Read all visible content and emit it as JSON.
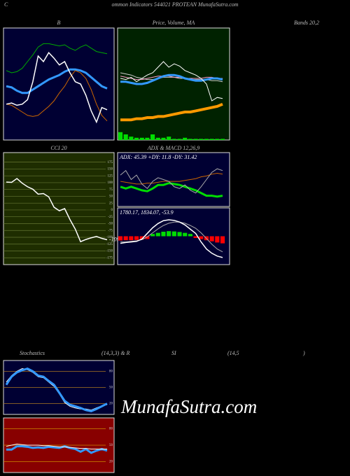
{
  "header": {
    "c": "C",
    "title": "ommon  Indicators 544021 PROTEAN  MunafaSutra.com",
    "bands": "Bands 20,2",
    "stoch_labels": [
      "Stochastics",
      "(14,3,3) & R",
      "SI",
      "(14,5",
      ")"
    ],
    "watermark": "MunafaSutra.com"
  },
  "chart_data": [
    {
      "type": "line",
      "title": "B",
      "background": "#000033",
      "ylim": [
        0,
        100
      ],
      "series": [
        {
          "color": "#00aa00",
          "width": 1,
          "values": [
            62,
            60,
            61,
            64,
            70,
            76,
            83,
            86,
            86,
            85,
            84,
            85,
            82,
            80,
            83,
            85,
            82,
            79,
            78,
            77
          ]
        },
        {
          "color": "#3399ff",
          "width": 3,
          "values": [
            48,
            47,
            44,
            42,
            42,
            45,
            48,
            51,
            54,
            56,
            58,
            61,
            63,
            63,
            62,
            60,
            56,
            52,
            48,
            46
          ]
        },
        {
          "color": "#cc6600",
          "width": 1,
          "values": [
            32,
            31,
            28,
            25,
            22,
            21,
            22,
            26,
            30,
            35,
            42,
            48,
            56,
            62,
            60,
            55,
            45,
            32,
            22,
            17
          ]
        },
        {
          "color": "#ffffff",
          "width": 1.5,
          "values": [
            32,
            33,
            31,
            32,
            36,
            52,
            75,
            70,
            78,
            73,
            67,
            70,
            60,
            52,
            50,
            40,
            26,
            16,
            29,
            27
          ]
        }
      ]
    },
    {
      "type": "line",
      "title": "Price, Volume, MA",
      "background": "#002200",
      "ylim": [
        0,
        100
      ],
      "series": [
        {
          "color": "#00dd00",
          "style": "bar",
          "values": [
            7,
            5,
            3,
            2,
            2,
            2,
            5,
            2,
            2,
            3,
            1,
            1,
            2,
            1,
            1,
            1,
            1,
            1,
            1,
            1
          ]
        },
        {
          "color": "#cccccc",
          "width": 1,
          "values": [
            60,
            59,
            58,
            56,
            55,
            54,
            54,
            55,
            56,
            56,
            56,
            55,
            55,
            54,
            54,
            54,
            54,
            53,
            53,
            52
          ]
        },
        {
          "color": "#ff99cc",
          "width": 1,
          "values": [
            57,
            56,
            55,
            54,
            54,
            55,
            56,
            57,
            57,
            57,
            56,
            56,
            55,
            55,
            55,
            55,
            56,
            56,
            55,
            55
          ]
        },
        {
          "color": "#3399ff",
          "width": 3,
          "values": [
            52,
            52,
            51,
            50,
            50,
            51,
            53,
            55,
            57,
            58,
            58,
            57,
            55,
            54,
            53,
            53,
            54,
            55,
            55,
            54
          ]
        },
        {
          "color": "#ff9900",
          "width": 4,
          "values": [
            18,
            18,
            18,
            19,
            19,
            20,
            20,
            21,
            21,
            22,
            23,
            24,
            25,
            25,
            26,
            27,
            28,
            29,
            30,
            32
          ]
        },
        {
          "color": "#ffffff",
          "width": 1,
          "values": [
            55,
            54,
            56,
            52,
            55,
            58,
            60,
            65,
            70,
            65,
            68,
            66,
            62,
            60,
            58,
            55,
            50,
            35,
            38,
            37
          ]
        }
      ]
    },
    {
      "type": "line",
      "title": "CCI 20",
      "background": "#1e2d00",
      "grid_color": "#667733",
      "ylim": [
        -200,
        210
      ],
      "yticks": [
        175,
        150,
        125,
        100,
        75,
        50,
        25,
        0,
        -25,
        -50,
        -75,
        -100,
        -125,
        -150,
        -175
      ],
      "series": [
        {
          "color": "#ffffff",
          "width": 1.5,
          "label_last": true,
          "values": [
            102,
            101,
            115,
            98,
            85,
            76,
            58,
            60,
            48,
            10,
            -3,
            5,
            -35,
            -70,
            -116,
            -108,
            -102,
            -97,
            -104,
            -109
          ]
        }
      ]
    },
    {
      "type": "line",
      "title": "ADX  & MACD 12,26,9",
      "subtitle": "ADX: 45.39 +DY: 11.8 -DY: 31.42",
      "background": "#000033",
      "ylim": [
        0,
        60
      ],
      "series": [
        {
          "color": "#cc6600",
          "width": 1,
          "values": [
            28,
            27,
            26,
            25,
            25,
            26,
            26,
            27,
            28,
            28,
            28,
            28,
            29,
            30,
            31,
            33,
            34,
            36,
            37,
            36
          ]
        },
        {
          "color": "#00dd00",
          "width": 3,
          "values": [
            22,
            20,
            22,
            20,
            18,
            17,
            20,
            24,
            24,
            26,
            25,
            24,
            22,
            20,
            18,
            15,
            12,
            12,
            11,
            12
          ]
        },
        {
          "color": "#aaaaaa",
          "width": 1,
          "values": [
            35,
            40,
            30,
            35,
            25,
            20,
            28,
            32,
            30,
            28,
            22,
            20,
            24,
            18,
            15,
            22,
            30,
            38,
            42,
            40
          ]
        }
      ]
    },
    {
      "type": "line",
      "subtitle": "1780.17,  1834.07,  -53.9",
      "background": "#000033",
      "ylim": [
        -100,
        100
      ],
      "series": [
        {
          "color": "#00dd00",
          "negative_color": "#ff0000",
          "style": "bar",
          "values": [
            -15,
            -14,
            -14,
            -13,
            -12,
            -10,
            8,
            12,
            16,
            18,
            17,
            15,
            12,
            8,
            -6,
            -10,
            -14,
            -18,
            -22,
            -25
          ]
        },
        {
          "color": "#aaaaaa",
          "width": 1,
          "values": [
            -20,
            -20,
            -18,
            -16,
            -12,
            -2,
            12,
            26,
            38,
            46,
            50,
            50,
            46,
            38,
            28,
            12,
            -8,
            -28,
            -45,
            -55
          ]
        },
        {
          "color": "#ffffff",
          "width": 1.5,
          "values": [
            -25,
            -22,
            -20,
            -18,
            -10,
            10,
            30,
            45,
            55,
            58,
            56,
            50,
            40,
            25,
            10,
            -20,
            -45,
            -60,
            -70,
            -75
          ]
        }
      ]
    },
    {
      "type": "line",
      "background": "#000033",
      "grid_color": "#aa7722",
      "ylim": [
        0,
        100
      ],
      "yticks": [
        80,
        50,
        20
      ],
      "series": [
        {
          "color": "#ffffff",
          "width": 1,
          "values": [
            60,
            72,
            80,
            85,
            83,
            78,
            70,
            68,
            60,
            52,
            38,
            22,
            15,
            12,
            10,
            10,
            8,
            12,
            16,
            18
          ]
        },
        {
          "color": "#3399ff",
          "width": 3,
          "values": [
            55,
            70,
            78,
            82,
            85,
            80,
            72,
            70,
            62,
            55,
            40,
            25,
            18,
            15,
            12,
            8,
            6,
            10,
            15,
            20
          ]
        }
      ]
    },
    {
      "type": "line",
      "background": "#880000",
      "grid_color": "#cc8800",
      "ylim": [
        0,
        100
      ],
      "yticks": [
        80,
        50,
        20
      ],
      "series": [
        {
          "color": "#3399ff",
          "width": 3,
          "values": [
            42,
            42,
            48,
            48,
            47,
            45,
            46,
            45,
            47,
            46,
            45,
            48,
            45,
            43,
            38,
            43,
            36,
            40,
            43,
            40
          ]
        },
        {
          "color": "#ffffff",
          "width": 1,
          "values": [
            48,
            50,
            52,
            51,
            50,
            50,
            50,
            49,
            49,
            48,
            47,
            47,
            46,
            45,
            44,
            44,
            43,
            43,
            43,
            43
          ]
        }
      ]
    }
  ]
}
